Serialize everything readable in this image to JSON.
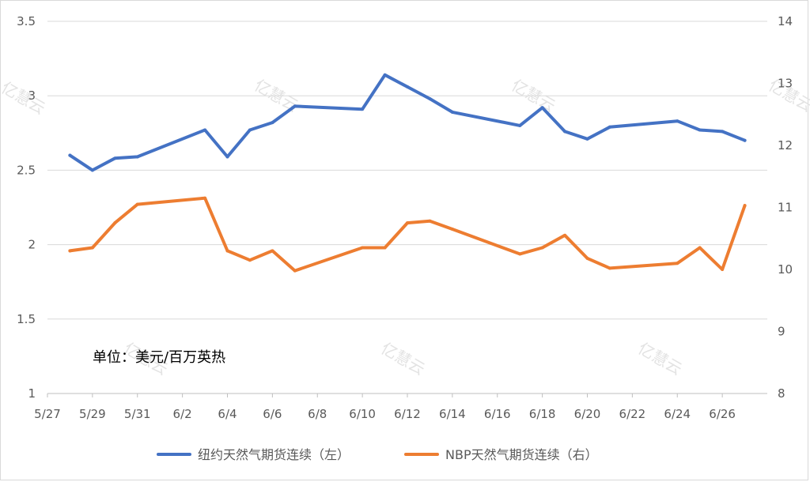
{
  "chart_data": {
    "type": "line",
    "annotation": "单位：美元/百万英热",
    "x": [
      "5/28",
      "5/29",
      "5/30",
      "5/31",
      "6/3",
      "6/4",
      "6/5",
      "6/6",
      "6/7",
      "6/10",
      "6/11",
      "6/12",
      "6/13",
      "6/14",
      "6/17",
      "6/18",
      "6/19",
      "6/20",
      "6/21",
      "6/24",
      "6/25",
      "6/26",
      "6/27"
    ],
    "x_ticks": [
      "5/27",
      "5/29",
      "5/31",
      "6/2",
      "6/4",
      "6/6",
      "6/8",
      "6/10",
      "6/12",
      "6/14",
      "6/16",
      "6/18",
      "6/20",
      "6/22",
      "6/24",
      "6/26"
    ],
    "left_axis": {
      "ylim": [
        1,
        3.5
      ],
      "ticks": [
        "1",
        "1.5",
        "2",
        "2.5",
        "3",
        "3.5"
      ]
    },
    "right_axis": {
      "ylim": [
        8,
        14
      ],
      "ticks": [
        "8",
        "9",
        "10",
        "11",
        "12",
        "13",
        "14"
      ]
    },
    "grid": true,
    "legend_position": "bottom",
    "series": [
      {
        "name": "纽约天然气期货连续（左）",
        "axis": "left",
        "color": "#4472C4",
        "values": [
          2.6,
          2.5,
          2.58,
          2.59,
          2.77,
          2.59,
          2.77,
          2.82,
          2.93,
          2.91,
          3.14,
          3.06,
          2.98,
          2.89,
          2.8,
          2.92,
          2.76,
          2.71,
          2.79,
          2.83,
          2.77,
          2.76,
          2.7
        ]
      },
      {
        "name": "NBP天然气期货连续（右）",
        "axis": "right",
        "color": "#ED7D31",
        "values": [
          10.3,
          10.35,
          10.75,
          11.05,
          11.15,
          10.3,
          10.15,
          10.3,
          9.98,
          10.35,
          10.35,
          10.75,
          10.78,
          10.65,
          10.25,
          10.35,
          10.55,
          10.18,
          10.02,
          10.1,
          10.35,
          10.0,
          11.03
        ]
      }
    ]
  },
  "watermark_text": "亿慧云"
}
